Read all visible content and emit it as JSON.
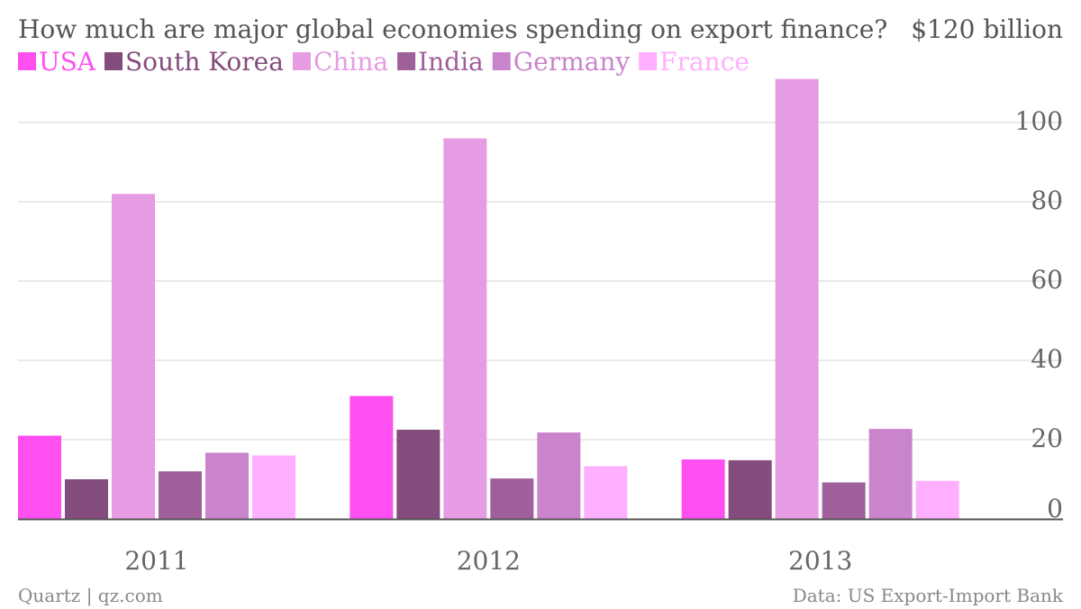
{
  "chart_data": {
    "type": "bar",
    "title": "How much are major global economies spending on export finance?",
    "ylabel": "$120 billion",
    "categories": [
      "2011",
      "2012",
      "2013"
    ],
    "series": [
      {
        "name": "USA",
        "color": "#ff4ff0",
        "values": [
          21,
          31,
          15
        ]
      },
      {
        "name": "South Korea",
        "color": "#844c7d",
        "values": [
          10,
          22.5,
          14.8
        ]
      },
      {
        "name": "China",
        "color": "#e69ce3",
        "values": [
          82,
          96,
          111
        ]
      },
      {
        "name": "India",
        "color": "#9f5f9b",
        "values": [
          12,
          10.2,
          9.2
        ]
      },
      {
        "name": "Germany",
        "color": "#ca84cc",
        "values": [
          16.7,
          21.8,
          22.7
        ]
      },
      {
        "name": "France",
        "color": "#ffafff",
        "values": [
          16,
          13.3,
          9.6
        ]
      }
    ],
    "yticks": [
      "0",
      "20",
      "40",
      "60",
      "80",
      "100"
    ],
    "ytick_values": [
      0,
      20,
      40,
      60,
      80,
      100
    ],
    "ylim": [
      0,
      120
    ],
    "grid": true,
    "legend": "top-left",
    "y_axis_side": "right"
  },
  "footer": {
    "left": "Quartz | qz.com",
    "right": "Data: US Export-Import Bank"
  }
}
